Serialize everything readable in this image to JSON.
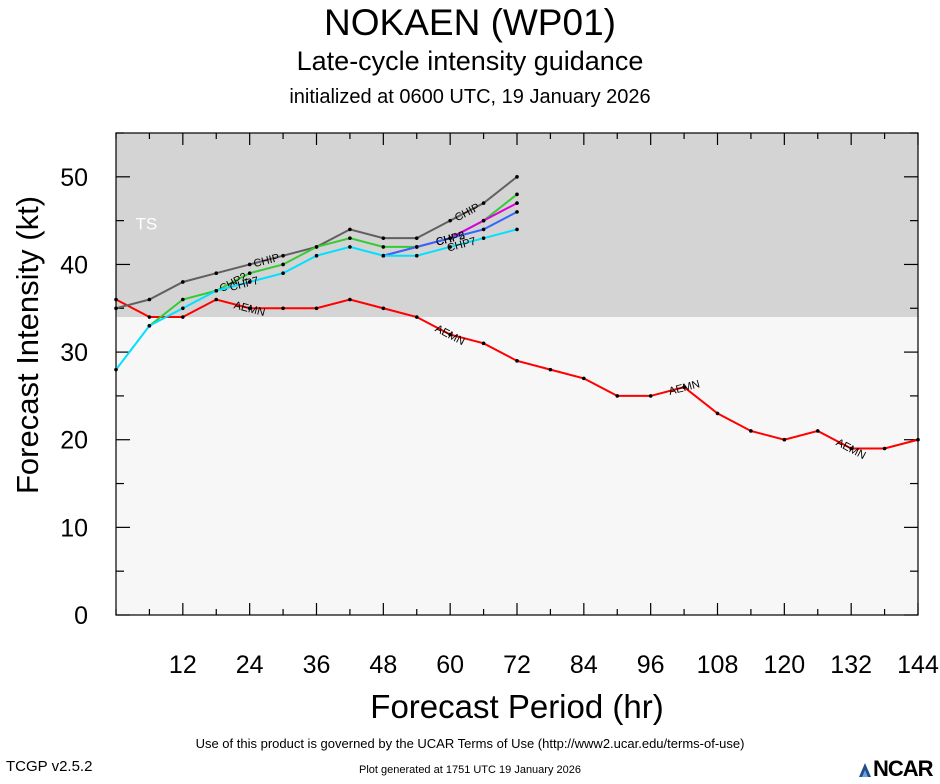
{
  "header": {
    "storm": "NOKAEN (WP01)",
    "subtitle": "Late-cycle intensity guidance",
    "init": "initialized at 0600 UTC, 19 January 2026"
  },
  "footer": {
    "terms": "Use of this product is governed by the UCAR Terms of Use (http://www2.ucar.edu/terms-of-use)",
    "generated": "Plot generated at 1751 UTC   19 January 2026",
    "version": "TCGP v2.5.2",
    "logo": "NCAR"
  },
  "chart_data": {
    "type": "line",
    "title": "NOKAEN (WP01)",
    "xlabel": "Forecast Period (hr)",
    "ylabel": "Forecast Intensity (kt)",
    "xlim": [
      0,
      144
    ],
    "ylim": [
      0,
      55
    ],
    "xticks": [
      12,
      24,
      36,
      48,
      60,
      72,
      84,
      96,
      108,
      120,
      132,
      144
    ],
    "yticks": [
      0,
      10,
      20,
      30,
      40,
      50
    ],
    "bands": [
      {
        "label": "TS",
        "from": 34,
        "to": 55,
        "color": "#d4d4d4"
      },
      {
        "label": "",
        "from": 0,
        "to": 34,
        "color": "#f7f7f7"
      }
    ],
    "series": [
      {
        "name": "AEMN",
        "color": "#ff0000",
        "labels_at": [
          24,
          60,
          102,
          132
        ],
        "points": [
          [
            0,
            36
          ],
          [
            6,
            34
          ],
          [
            12,
            34
          ],
          [
            18,
            36
          ],
          [
            24,
            35
          ],
          [
            30,
            35
          ],
          [
            36,
            35
          ],
          [
            42,
            36
          ],
          [
            48,
            35
          ],
          [
            54,
            34
          ],
          [
            60,
            32
          ],
          [
            66,
            31
          ],
          [
            72,
            29
          ],
          [
            78,
            28
          ],
          [
            84,
            27
          ],
          [
            90,
            25
          ],
          [
            96,
            25
          ],
          [
            102,
            26
          ],
          [
            108,
            23
          ],
          [
            114,
            21
          ],
          [
            120,
            20
          ],
          [
            126,
            21
          ],
          [
            132,
            19
          ],
          [
            138,
            19
          ],
          [
            144,
            20
          ]
        ]
      },
      {
        "name": "CHIP",
        "color": "#606060",
        "labels_at": [
          27,
          63
        ],
        "points": [
          [
            0,
            35
          ],
          [
            6,
            36
          ],
          [
            12,
            38
          ],
          [
            18,
            39
          ],
          [
            24,
            40
          ],
          [
            30,
            41
          ],
          [
            36,
            42
          ],
          [
            42,
            44
          ],
          [
            48,
            43
          ],
          [
            54,
            43
          ],
          [
            60,
            45
          ],
          [
            66,
            47
          ],
          [
            72,
            50
          ]
        ]
      },
      {
        "name": "CHP2",
        "color": "#33cc33",
        "labels_at": [
          21,
          60
        ],
        "points": [
          [
            6,
            33
          ],
          [
            12,
            36
          ],
          [
            18,
            37
          ],
          [
            24,
            39
          ],
          [
            30,
            40
          ],
          [
            36,
            42
          ],
          [
            42,
            43
          ],
          [
            48,
            42
          ],
          [
            54,
            42
          ],
          [
            60,
            43
          ],
          [
            66,
            45
          ],
          [
            72,
            48
          ]
        ]
      },
      {
        "name": "CHP3",
        "color": "#dd00dd",
        "labels_at": [
          60
        ],
        "points": [
          [
            48,
            41
          ],
          [
            54,
            42
          ],
          [
            60,
            43
          ],
          [
            66,
            45
          ],
          [
            72,
            47
          ]
        ]
      },
      {
        "name": "CHP5",
        "color": "#3366ff",
        "labels_at": [
          60
        ],
        "points": [
          [
            48,
            41
          ],
          [
            54,
            42
          ],
          [
            60,
            43
          ],
          [
            66,
            44
          ],
          [
            72,
            46
          ]
        ]
      },
      {
        "name": "CHP7",
        "color": "#00e0ff",
        "labels_at": [
          23,
          62
        ],
        "points": [
          [
            0,
            28
          ],
          [
            6,
            33
          ],
          [
            12,
            35
          ],
          [
            18,
            37
          ],
          [
            24,
            38
          ],
          [
            30,
            39
          ],
          [
            36,
            41
          ],
          [
            42,
            42
          ],
          [
            48,
            41
          ],
          [
            54,
            41
          ],
          [
            60,
            42
          ],
          [
            66,
            43
          ],
          [
            72,
            44
          ]
        ]
      }
    ]
  }
}
